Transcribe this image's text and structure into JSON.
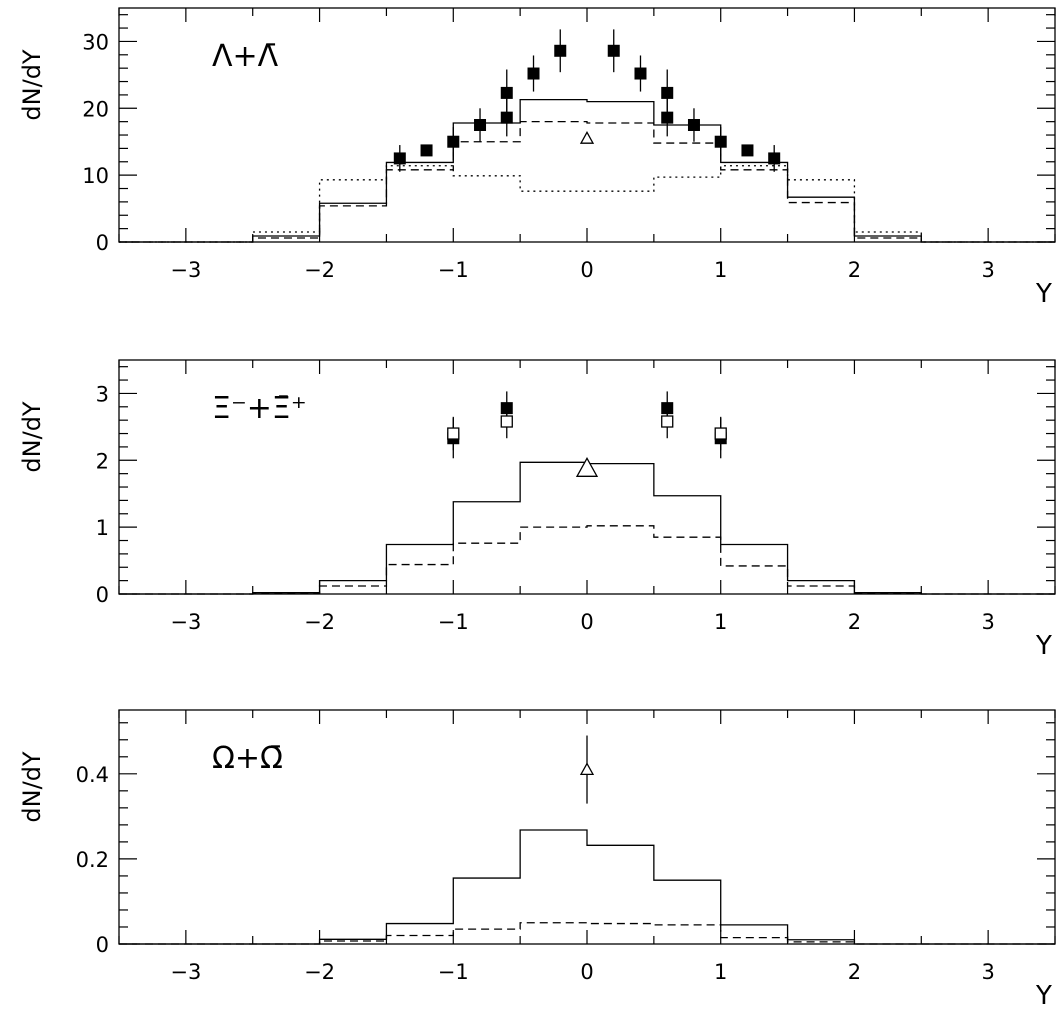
{
  "chart_data": [
    {
      "type": "step-histogram",
      "particle_label": "Λ+Λ̄",
      "xlabel": "Y",
      "ylabel": "dN/dY",
      "xlim": [
        -3.5,
        3.5
      ],
      "ylim": [
        0,
        35
      ],
      "xticks": [
        -3,
        -2,
        -1,
        0,
        1,
        2,
        3
      ],
      "yticks": [
        0,
        10,
        20,
        30
      ],
      "bin_edges": [
        -3.5,
        -3.0,
        -2.5,
        -2.0,
        -1.5,
        -1.0,
        -0.5,
        0.0,
        0.5,
        1.0,
        1.5,
        2.0,
        2.5,
        3.0,
        3.5
      ],
      "histograms": [
        {
          "style": "solid",
          "values": [
            0,
            0,
            0.9,
            5.8,
            11.9,
            17.8,
            21.3,
            21.0,
            17.5,
            11.9,
            6.7,
            0.9,
            0,
            0
          ]
        },
        {
          "style": "dashed",
          "values": [
            0,
            0,
            0.6,
            5.4,
            10.8,
            15.0,
            18.0,
            17.8,
            14.8,
            10.8,
            5.9,
            0.6,
            0,
            0
          ]
        },
        {
          "style": "dotted",
          "values": [
            0,
            0,
            1.5,
            9.3,
            11.4,
            9.9,
            7.6,
            7.6,
            9.7,
            11.4,
            9.3,
            1.5,
            0,
            0
          ]
        }
      ],
      "points": [
        {
          "marker": "filled-square",
          "x": -1.4,
          "y": 12.5,
          "err": 2.0
        },
        {
          "marker": "filled-square",
          "x": -1.2,
          "y": 13.7,
          "err": 0
        },
        {
          "marker": "filled-square",
          "x": -1.0,
          "y": 15.0,
          "err": 2.2
        },
        {
          "marker": "filled-square",
          "x": -0.8,
          "y": 17.5,
          "err": 2.5
        },
        {
          "marker": "filled-square",
          "x": -0.6,
          "y": 18.6,
          "err": 2.8
        },
        {
          "marker": "filled-square",
          "x": -0.6,
          "y": 22.3,
          "err": 3.5
        },
        {
          "marker": "filled-square",
          "x": -0.4,
          "y": 25.2,
          "err": 2.7
        },
        {
          "marker": "filled-square",
          "x": -0.2,
          "y": 28.6,
          "err": 3.2
        },
        {
          "marker": "filled-square",
          "x": 0.2,
          "y": 28.6,
          "err": 3.2
        },
        {
          "marker": "filled-square",
          "x": 0.4,
          "y": 25.2,
          "err": 2.7
        },
        {
          "marker": "filled-square",
          "x": 0.6,
          "y": 22.3,
          "err": 3.5
        },
        {
          "marker": "filled-square",
          "x": 0.6,
          "y": 18.6,
          "err": 2.8
        },
        {
          "marker": "filled-square",
          "x": 0.8,
          "y": 17.5,
          "err": 2.5
        },
        {
          "marker": "filled-square",
          "x": 1.0,
          "y": 15.0,
          "err": 2.2
        },
        {
          "marker": "filled-square",
          "x": 1.2,
          "y": 13.7,
          "err": 0
        },
        {
          "marker": "filled-square",
          "x": 1.4,
          "y": 12.5,
          "err": 2.0
        },
        {
          "marker": "open-triangle",
          "x": 0.0,
          "y": 15.5,
          "err": 0
        }
      ]
    },
    {
      "type": "step-histogram",
      "particle_label": "Ξ⁻+Ξ̄⁺",
      "xlabel": "Y",
      "ylabel": "dN/dY",
      "xlim": [
        -3.5,
        3.5
      ],
      "ylim": [
        0,
        3.5
      ],
      "xticks": [
        -3,
        -2,
        -1,
        0,
        1,
        2,
        3
      ],
      "yticks": [
        0,
        1,
        2,
        3
      ],
      "bin_edges": [
        -3.5,
        -3.0,
        -2.5,
        -2.0,
        -1.5,
        -1.0,
        -0.5,
        0.0,
        0.5,
        1.0,
        1.5,
        2.0,
        2.5,
        3.0,
        3.5
      ],
      "histograms": [
        {
          "style": "solid",
          "values": [
            0,
            0,
            0.02,
            0.2,
            0.74,
            1.38,
            1.97,
            1.95,
            1.47,
            0.74,
            0.2,
            0.02,
            0,
            0
          ]
        },
        {
          "style": "dashed",
          "values": [
            0,
            0,
            0.01,
            0.12,
            0.44,
            0.76,
            1.0,
            1.02,
            0.85,
            0.42,
            0.12,
            0.01,
            0,
            0
          ]
        }
      ],
      "points": [
        {
          "marker": "filled-square",
          "x": -1.0,
          "y": 2.33,
          "err": 0.3
        },
        {
          "marker": "open-square",
          "x": -1.0,
          "y": 2.4,
          "err": 0.25
        },
        {
          "marker": "filled-square",
          "x": -0.6,
          "y": 2.78,
          "err": 0.25
        },
        {
          "marker": "open-square",
          "x": -0.6,
          "y": 2.58,
          "err": 0.25
        },
        {
          "marker": "filled-square",
          "x": 0.6,
          "y": 2.78,
          "err": 0.25
        },
        {
          "marker": "open-square",
          "x": 0.6,
          "y": 2.58,
          "err": 0.25
        },
        {
          "marker": "filled-square",
          "x": 1.0,
          "y": 2.33,
          "err": 0.3
        },
        {
          "marker": "open-square",
          "x": 1.0,
          "y": 2.4,
          "err": 0.25
        },
        {
          "marker": "open-triangle-large",
          "x": 0.0,
          "y": 1.88,
          "err": 0.12
        }
      ]
    },
    {
      "type": "step-histogram",
      "particle_label": "Ω+Ω̄",
      "xlabel": "Y",
      "ylabel": "dN/dY",
      "xlim": [
        -3.5,
        3.5
      ],
      "ylim": [
        0,
        0.55
      ],
      "xticks": [
        -3,
        -2,
        -1,
        0,
        1,
        2,
        3
      ],
      "yticks": [
        0,
        0.2,
        0.4
      ],
      "ytick_labels": [
        "0",
        "0.2",
        "0.4"
      ],
      "bin_edges": [
        -3.5,
        -3.0,
        -2.5,
        -2.0,
        -1.5,
        -1.0,
        -0.5,
        0.0,
        0.5,
        1.0,
        1.5,
        2.0,
        2.5,
        3.0,
        3.5
      ],
      "histograms": [
        {
          "style": "solid",
          "values": [
            0,
            0,
            0,
            0.011,
            0.048,
            0.155,
            0.268,
            0.232,
            0.15,
            0.045,
            0.01,
            0,
            0,
            0
          ]
        },
        {
          "style": "dashed",
          "values": [
            0,
            0,
            0,
            0.007,
            0.02,
            0.035,
            0.05,
            0.048,
            0.045,
            0.015,
            0.005,
            0,
            0,
            0
          ]
        }
      ],
      "points": [
        {
          "marker": "open-triangle",
          "x": 0.0,
          "y": 0.41,
          "err": 0.08
        }
      ]
    }
  ]
}
